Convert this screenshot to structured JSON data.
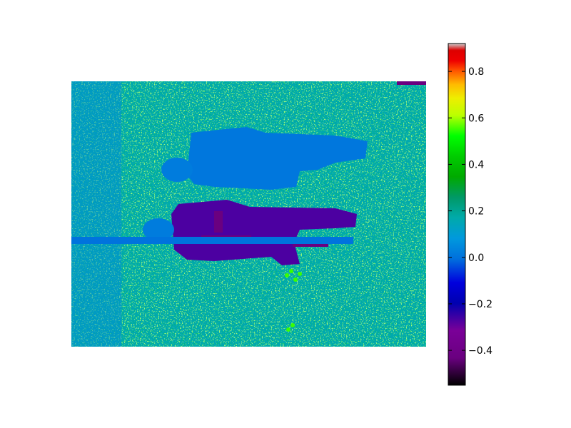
{
  "chart_data": {
    "type": "heatmap",
    "title": "",
    "xlabel": "",
    "ylabel": "",
    "axes_visible": false,
    "colormap": "nipy_spectral",
    "colorbar": {
      "position": "right",
      "range": [
        -0.55,
        0.92
      ],
      "ticks": [
        -0.4,
        -0.2,
        0.0,
        0.2,
        0.4,
        0.6,
        0.8
      ],
      "tick_labels": [
        "−0.4",
        "−0.2",
        "0.0",
        "0.2",
        "0.4",
        "0.6",
        "0.8"
      ]
    },
    "field": {
      "background_value": 0.16,
      "regions": [
        {
          "name": "left-strip",
          "value": 0.05
        },
        {
          "name": "figure-upper-body",
          "value": 0.01
        },
        {
          "name": "figure-upper-head",
          "value": 0.02
        },
        {
          "name": "figure-lower-body",
          "value": -0.27
        },
        {
          "name": "figure-lower-accents",
          "value": -0.43
        },
        {
          "name": "horizontal-bar",
          "value": 0.0
        },
        {
          "name": "hot-spots",
          "value": 0.55
        },
        {
          "name": "corner-mark",
          "value": -0.43
        }
      ]
    }
  }
}
